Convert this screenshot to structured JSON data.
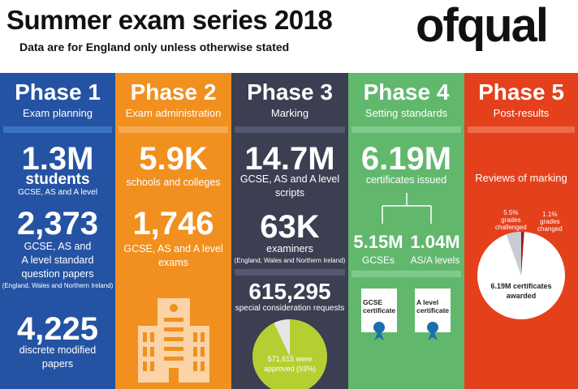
{
  "header": {
    "title": "Summer exam series 2018",
    "subtitle": "Data are for England only unless otherwise stated",
    "logo": "ofqual"
  },
  "colors": {
    "phase1": "#2553a3",
    "phase2": "#f1901f",
    "phase3": "#3c3e52",
    "phase4": "#61b86d",
    "phase5": "#e5401c"
  },
  "phase1": {
    "title": "Phase 1",
    "subtitle": "Exam planning",
    "stat1_value": "1.3M",
    "stat1_label": "students",
    "stat1_sub": "GCSE, AS and A level",
    "stat2_value": "2,373",
    "stat2_label1": "GCSE, AS and",
    "stat2_label2": "A level standard",
    "stat2_label3": "question papers",
    "stat2_note": "(England, Wales and Northern Ireland)",
    "stat3_value": "4,225",
    "stat3_label1": "discrete modified",
    "stat3_label2": "papers"
  },
  "phase2": {
    "title": "Phase 2",
    "subtitle": "Exam administration",
    "stat1_value": "5.9K",
    "stat1_label": "schools and colleges",
    "stat2_value": "1,746",
    "stat2_label1": "GCSE, AS and A level",
    "stat2_label2": "exams",
    "building_icon": "building-icon"
  },
  "phase3": {
    "title": "Phase 3",
    "subtitle": "Marking",
    "stat1_value": "14.7M",
    "stat1_label1": "GCSE, AS and A level",
    "stat1_label2": "scripts",
    "stat2_value": "63K",
    "stat2_label": "examiners",
    "stat2_note": "(England, Wales and Northern Ireland)",
    "stat3_value": "615,295",
    "stat3_label": "special consideration requests",
    "pie_label1": "571,615 were",
    "pie_label2": "approved (93%)",
    "pie_approved_share": 0.93
  },
  "phase4": {
    "title": "Phase 4",
    "subtitle": "Setting standards",
    "stat1_value": "6.19M",
    "stat1_label": "certificates issued",
    "gcse_value": "5.15M",
    "gcse_label": "GCSEs",
    "alevel_value": "1.04M",
    "alevel_label": "AS/A levels",
    "cert1": "GCSE certificate",
    "cert2": "A level certificate"
  },
  "phase5": {
    "title": "Phase 5",
    "subtitle": "Post-results",
    "heading": "Reviews of marking",
    "challenged_pct": "5.5%",
    "challenged_label1": "grades",
    "challenged_label2": "challenged",
    "changed_pct": "1.1%",
    "changed_label1": "grades",
    "changed_label2": "changed",
    "pie_label1": "6.19M certificates",
    "pie_label2": "awarded",
    "challenged_share": 0.055,
    "changed_share": 0.011
  }
}
